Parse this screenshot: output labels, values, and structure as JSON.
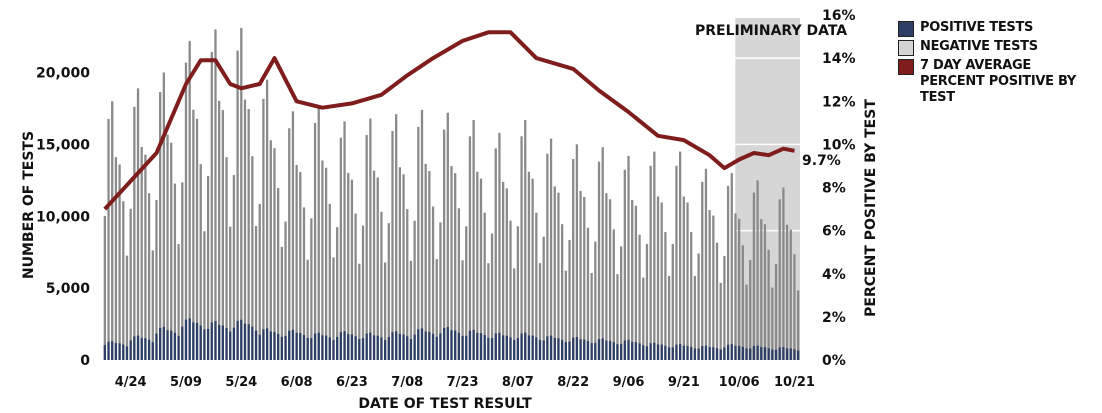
{
  "chart_data": {
    "type": "bar+line",
    "xlabel": "DATE OF TEST RESULT",
    "ylabel_left": "NUMBER OF TESTS",
    "ylabel_right": "PERCENT POSITIVE BY TEST",
    "y_left_ticks": [
      "0",
      "5,000",
      "10,000",
      "15,000",
      "20,000"
    ],
    "y_left_range": [
      0,
      24000
    ],
    "y_right_ticks": [
      "0%",
      "2%",
      "4%",
      "6%",
      "8%",
      "10%",
      "12%",
      "14%",
      "16%"
    ],
    "y_right_range": [
      0,
      16
    ],
    "x_tick_labels": [
      "4/24",
      "5/09",
      "5/24",
      "6/08",
      "6/23",
      "7/08",
      "7/23",
      "8/07",
      "8/22",
      "9/06",
      "9/21",
      "10/06",
      "10/21"
    ],
    "start_date": "4/17",
    "end_date": "10/22",
    "preliminary_label": "PRELIMINARY DATA",
    "preliminary_start": "10/06",
    "last_value_label": "9.7%",
    "series": [
      {
        "name": "POSITIVE TESTS",
        "color": "#2e3f66"
      },
      {
        "name": "NEGATIVE TESTS",
        "color": "#d4d4d4"
      },
      {
        "name": "7 DAY AVERAGE PERCENT POSITIVE BY TEST",
        "color": "#7f1d1d"
      }
    ],
    "total_tests_weekly_pattern": [
      9800,
      16400,
      17600,
      13800,
      13300,
      10800,
      7100
    ],
    "total_tests_weekly_peaks": [
      18000,
      18900,
      20000,
      22200,
      23000,
      23100,
      19500,
      17300,
      17700,
      16600,
      16800,
      17100,
      17400,
      17200,
      16700,
      15800,
      16700,
      15400,
      15000,
      14800,
      14200,
      14500,
      14500,
      13300,
      13000,
      12500,
      12000,
      9500
    ],
    "positive_tests_weekly_peaks": [
      1300,
      1700,
      2300,
      2900,
      2700,
      2800,
      2200,
      2100,
      1900,
      2000,
      1900,
      2000,
      2200,
      2300,
      2100,
      1900,
      1900,
      1700,
      1600,
      1500,
      1400,
      1200,
      1100,
      1000,
      1100,
      1000,
      900,
      900
    ],
    "percent_positive_7day": [
      {
        "date": "4/17",
        "value": 7.0
      },
      {
        "date": "4/24",
        "value": 8.3
      },
      {
        "date": "5/01",
        "value": 9.6
      },
      {
        "date": "5/09",
        "value": 12.8
      },
      {
        "date": "5/13",
        "value": 13.9
      },
      {
        "date": "5/17",
        "value": 13.9
      },
      {
        "date": "5/21",
        "value": 12.8
      },
      {
        "date": "5/24",
        "value": 12.6
      },
      {
        "date": "5/29",
        "value": 12.8
      },
      {
        "date": "6/02",
        "value": 14.0
      },
      {
        "date": "6/08",
        "value": 12.0
      },
      {
        "date": "6/15",
        "value": 11.7
      },
      {
        "date": "6/23",
        "value": 11.9
      },
      {
        "date": "7/01",
        "value": 12.3
      },
      {
        "date": "7/08",
        "value": 13.2
      },
      {
        "date": "7/15",
        "value": 14.0
      },
      {
        "date": "7/23",
        "value": 14.8
      },
      {
        "date": "7/30",
        "value": 15.2
      },
      {
        "date": "8/05",
        "value": 15.2
      },
      {
        "date": "8/12",
        "value": 14.0
      },
      {
        "date": "8/22",
        "value": 13.5
      },
      {
        "date": "8/29",
        "value": 12.5
      },
      {
        "date": "9/06",
        "value": 11.5
      },
      {
        "date": "9/14",
        "value": 10.4
      },
      {
        "date": "9/21",
        "value": 10.2
      },
      {
        "date": "9/28",
        "value": 9.5
      },
      {
        "date": "10/02",
        "value": 8.9
      },
      {
        "date": "10/06",
        "value": 9.3
      },
      {
        "date": "10/10",
        "value": 9.6
      },
      {
        "date": "10/14",
        "value": 9.5
      },
      {
        "date": "10/18",
        "value": 9.8
      },
      {
        "date": "10/21",
        "value": 9.7
      }
    ]
  }
}
